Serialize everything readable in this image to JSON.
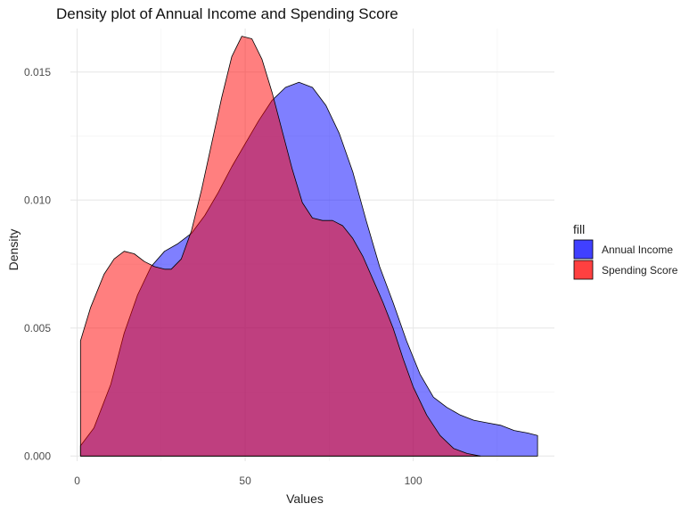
{
  "chart_data": {
    "type": "area",
    "title": "Density plot of Annual Income and Spending Score",
    "xlabel": "Values",
    "ylabel": "Density",
    "xlim": [
      -2,
      142
    ],
    "ylim": [
      -0.0002,
      0.0167
    ],
    "x_ticks": [
      0,
      50,
      100
    ],
    "x_tick_labels": [
      "0",
      "50",
      "100"
    ],
    "y_ticks": [
      0.0,
      0.005,
      0.01,
      0.015
    ],
    "y_tick_labels": [
      "0.000",
      "0.005",
      "0.010",
      "0.015"
    ],
    "grid": true,
    "legend": {
      "title": "fill",
      "placement": "right"
    },
    "series": [
      {
        "name": "Annual Income",
        "color": "#0000FF",
        "fill_opacity": 0.5,
        "points": [
          [
            1,
            0.0004
          ],
          [
            5,
            0.0011
          ],
          [
            10,
            0.0028
          ],
          [
            14,
            0.0048
          ],
          [
            18,
            0.0063
          ],
          [
            22,
            0.0074
          ],
          [
            26,
            0.008
          ],
          [
            30,
            0.0083
          ],
          [
            34,
            0.0087
          ],
          [
            38,
            0.0094
          ],
          [
            42,
            0.0103
          ],
          [
            46,
            0.0113
          ],
          [
            50,
            0.0122
          ],
          [
            54,
            0.0131
          ],
          [
            58,
            0.0139
          ],
          [
            62,
            0.0144
          ],
          [
            66,
            0.0146
          ],
          [
            70,
            0.0144
          ],
          [
            74,
            0.0137
          ],
          [
            78,
            0.0126
          ],
          [
            82,
            0.0111
          ],
          [
            86,
            0.0092
          ],
          [
            90,
            0.0074
          ],
          [
            94,
            0.006
          ],
          [
            98,
            0.0045
          ],
          [
            102,
            0.0032
          ],
          [
            106,
            0.0023
          ],
          [
            110,
            0.0019
          ],
          [
            114,
            0.0016
          ],
          [
            118,
            0.0014
          ],
          [
            122,
            0.0013
          ],
          [
            126,
            0.0012
          ],
          [
            130,
            0.001
          ],
          [
            134,
            0.0009
          ],
          [
            137,
            0.0008
          ]
        ]
      },
      {
        "name": "Spending Score",
        "color": "#FF0000",
        "fill_opacity": 0.5,
        "points": [
          [
            1,
            0.0045
          ],
          [
            4,
            0.0058
          ],
          [
            8,
            0.0071
          ],
          [
            11,
            0.0077
          ],
          [
            14,
            0.008
          ],
          [
            17,
            0.0079
          ],
          [
            20,
            0.0076
          ],
          [
            23,
            0.0074
          ],
          [
            26,
            0.0073
          ],
          [
            28,
            0.0073
          ],
          [
            31,
            0.0077
          ],
          [
            34,
            0.0088
          ],
          [
            37,
            0.0104
          ],
          [
            40,
            0.0122
          ],
          [
            43,
            0.014
          ],
          [
            46,
            0.0156
          ],
          [
            49,
            0.0164
          ],
          [
            52,
            0.0163
          ],
          [
            55,
            0.0155
          ],
          [
            58,
            0.0142
          ],
          [
            61,
            0.0127
          ],
          [
            64,
            0.0112
          ],
          [
            67,
            0.0099
          ],
          [
            70,
            0.0093
          ],
          [
            73,
            0.0092
          ],
          [
            76,
            0.0092
          ],
          [
            79,
            0.009
          ],
          [
            82,
            0.0085
          ],
          [
            85,
            0.0078
          ],
          [
            88,
            0.0069
          ],
          [
            91,
            0.006
          ],
          [
            94,
            0.005
          ],
          [
            97,
            0.0038
          ],
          [
            100,
            0.0027
          ],
          [
            104,
            0.0016
          ],
          [
            108,
            0.0008
          ],
          [
            112,
            0.0003
          ],
          [
            116,
            0.0001
          ],
          [
            120,
            0.0
          ]
        ]
      }
    ]
  }
}
